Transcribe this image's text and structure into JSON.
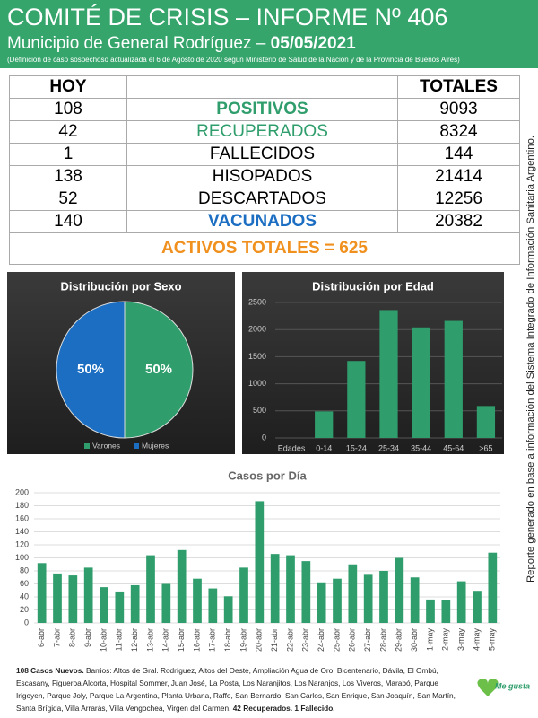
{
  "header": {
    "title": "COMITÉ DE CRISIS – INFORME Nº 406",
    "subtitle": "Municipio de General Rodríguez –",
    "date": "05/05/2021",
    "note": "(Definición de caso sospechoso actualizada el 6 de Agosto de 2020 según Ministerio de Salud de la Nación y de la Provincia de Buenos Aires)"
  },
  "table": {
    "head": [
      "HOY",
      "TOTALES"
    ],
    "rows": [
      {
        "hoy": 108,
        "label": "POSITIVOS",
        "total": 9093
      },
      {
        "hoy": 42,
        "label": "RECUPERADOS",
        "total": 8324
      },
      {
        "hoy": 1,
        "label": "FALLECIDOS",
        "total": 144
      },
      {
        "hoy": 138,
        "label": "HISOPADOS",
        "total": 21414
      },
      {
        "hoy": 52,
        "label": "DESCARTADOS",
        "total": 12256
      },
      {
        "hoy": 140,
        "label": "VACUNADOS",
        "total": 20382
      }
    ],
    "activos": "ACTIVOS TOTALES = 625"
  },
  "chart_data": [
    {
      "type": "pie",
      "title": "Distribución por Sexo",
      "categories": [
        "Varones",
        "Mujeres"
      ],
      "values": [
        50,
        50
      ],
      "value_labels": [
        "50%",
        "50%"
      ],
      "colors": [
        "#2f9e6c",
        "#1b6ec2"
      ],
      "legend": "bottom"
    },
    {
      "type": "bar",
      "title": "Distribución por Edad",
      "x_label": "Edades",
      "categories": [
        "0-14",
        "15-24",
        "25-34",
        "35-44",
        "45-64",
        ">65"
      ],
      "values": [
        490,
        1420,
        2360,
        2040,
        2160,
        590
      ],
      "color": "#2f9e6c",
      "ylim": [
        0,
        2500
      ],
      "yticks": [
        0,
        500,
        1000,
        1500,
        2000,
        2500
      ],
      "grid": true
    },
    {
      "type": "bar",
      "title": "Casos por Día",
      "categories": [
        "6-abr",
        "7-abr",
        "8-abr",
        "9-abr",
        "10-abr",
        "11-abr",
        "12-abr",
        "13-abr",
        "14-abr",
        "15-abr",
        "16-abr",
        "17-abr",
        "18-abr",
        "19-abr",
        "20-abr",
        "21-abr",
        "22-abr",
        "23-abr",
        "24-abr",
        "25-abr",
        "26-abr",
        "27-abr",
        "28-abr",
        "29-abr",
        "30-abr",
        "1-may",
        "2-may",
        "3-may",
        "4-may",
        "5-may"
      ],
      "values": [
        92,
        76,
        73,
        85,
        55,
        47,
        58,
        104,
        60,
        112,
        68,
        53,
        41,
        85,
        187,
        106,
        104,
        95,
        61,
        68,
        90,
        74,
        80,
        100,
        70,
        36,
        35,
        64,
        48,
        108
      ],
      "color": "#2f9e6c",
      "ylim": [
        0,
        200
      ],
      "yticks": [
        0,
        20,
        40,
        60,
        80,
        100,
        120,
        140,
        160,
        180,
        200
      ],
      "grid": true
    }
  ],
  "footer": {
    "lead": "108 Casos Nuevos.",
    "text": " Barrios: Altos de Gral. Rodríguez, Altos del Oeste, Ampliación Agua de Oro, Bicentenario, Dávila, El Ombú, Escasany, Figueroa Alcorta, Hospital Sommer, Juan José, La Posta, Los Naranjitos, Los Naranjos, Los Viveros, Marabó, Parque Irigoyen, Parque Joly, Parque La Argentina, Planta Urbana, Raffo, San Bernardo, San Carlos, San Enrique, San Joaquín, San Martín, Santa Brígida, Villa Arrarás, Villa Vengochea, Virgen del Carmen. ",
    "tail": "42 Recuperados. 1 Fallecido."
  },
  "side_note": "Reporte generado en base a información del Sistema Integrado de Información Sanitaria Argentino.",
  "logo": "Me gusta"
}
